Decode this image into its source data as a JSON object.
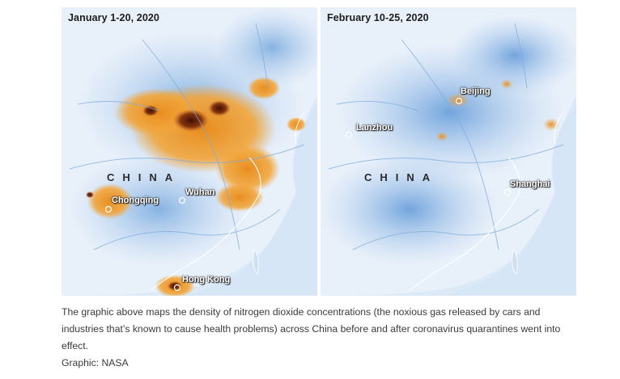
{
  "maps": {
    "before": {
      "title": "January 1-20, 2020",
      "country": "CHINA",
      "cities": [
        "Chongqing",
        "Wuhan",
        "Hong Kong"
      ]
    },
    "after": {
      "title": "February 10-25, 2020",
      "country": "CHINA",
      "cities": [
        "Beijing",
        "Lanzhou",
        "Shanghai"
      ]
    },
    "colors": {
      "background": "#dce9f7",
      "low": "#4f8fd4",
      "medium": "#f0a235",
      "high": "#5a1a0a"
    }
  },
  "caption": {
    "text": "The graphic above maps the density of nitrogen dioxide concentrations (the noxious gas released by cars and industries that’s known to cause health problems) across China before and after coronavirus quarantines went into effect.",
    "credit": "Graphic: NASA"
  }
}
